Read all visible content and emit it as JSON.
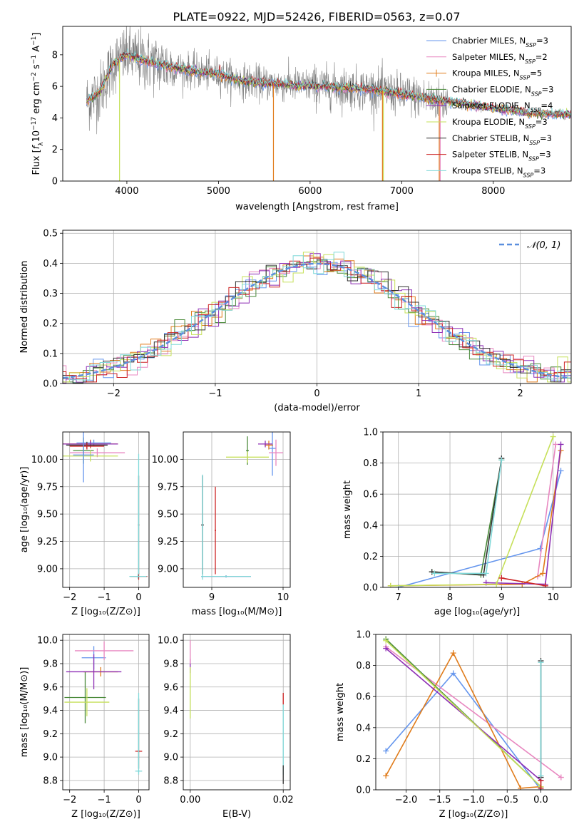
{
  "figure_title": "PLATE=0922, MJD=52426, FIBERID=0563, z=0.07",
  "colors": {
    "chabrier_miles": "#6495ed",
    "salpeter_miles": "#e887c0",
    "kroupa_miles": "#e07b1a",
    "chabrier_elodie": "#4a8a3a",
    "salpeter_elodie": "#8e2fb5",
    "kroupa_elodie": "#c6e05a",
    "chabrier_stelib": "#333333",
    "salpeter_stelib": "#cc2222",
    "kroupa_stelib": "#7fd8d8",
    "data": "#808080",
    "normal": "#5b8fde",
    "grid": "#b0b0b0"
  },
  "chart_data": [
    {
      "id": "spectrum",
      "type": "line",
      "title": "PLATE=0922, MJD=52426, FIBERID=0563, z=0.07",
      "xlabel": "wavelength [Angstrom, rest frame]",
      "ylabel": "Flux [f_λ 10^-17 erg cm^-2 s^-1 A^-1]",
      "xlim": [
        3300,
        8850
      ],
      "ylim": [
        0,
        9.8
      ],
      "xticks": [
        4000,
        5000,
        6000,
        7000,
        8000
      ],
      "yticks": [
        0,
        2,
        4,
        6,
        8
      ],
      "grid": false,
      "legend_position": "top-right",
      "continuum": {
        "x": [
          3550,
          3700,
          3850,
          4000,
          4200,
          4500,
          4800,
          5000,
          5200,
          5500,
          5800,
          6100,
          6400,
          6700,
          7000,
          7200,
          7400,
          7600,
          8000,
          8400,
          8800
        ],
        "y": [
          5.0,
          5.6,
          7.4,
          8.0,
          7.6,
          7.2,
          6.9,
          6.8,
          6.4,
          6.2,
          6.1,
          6.0,
          5.9,
          5.8,
          5.5,
          5.3,
          5.1,
          5.0,
          4.6,
          4.3,
          4.2
        ]
      },
      "series": [
        {
          "name": "Chabrier MILES, N_SSP=3",
          "color_key": "chabrier_miles"
        },
        {
          "name": "Salpeter MILES, N_SSP=2",
          "color_key": "salpeter_miles"
        },
        {
          "name": "Kroupa MILES, N_SSP=5",
          "color_key": "kroupa_miles"
        },
        {
          "name": "Chabrier ELODIE, N_SSP=3",
          "color_key": "chabrier_elodie"
        },
        {
          "name": "Salpeter ELODIE, N_SSP=4",
          "color_key": "salpeter_elodie"
        },
        {
          "name": "Kroupa ELODIE, N_SSP=3",
          "color_key": "kroupa_elodie"
        },
        {
          "name": "Chabrier STELIB, N_SSP=3",
          "color_key": "chabrier_stelib"
        },
        {
          "name": "Salpeter STELIB, N_SSP=3",
          "color_key": "salpeter_stelib"
        },
        {
          "name": "Kroupa STELIB, N_SSP=3",
          "color_key": "kroupa_stelib"
        }
      ],
      "legend_labels": [
        {
          "base": "Chabrier MILES, N",
          "sub": "SSP",
          "tail": "=3"
        },
        {
          "base": "Salpeter MILES, N",
          "sub": "SSP",
          "tail": "=2"
        },
        {
          "base": "Kroupa MILES, N",
          "sub": "SSP",
          "tail": "=5"
        },
        {
          "base": "Chabrier ELODIE, N",
          "sub": "SSP",
          "tail": "=3"
        },
        {
          "base": "Salpeter ELODIE, N",
          "sub": "SSP",
          "tail": "=4"
        },
        {
          "base": "Kroupa ELODIE, N",
          "sub": "SSP",
          "tail": "=3"
        },
        {
          "base": "Chabrier STELIB, N",
          "sub": "SSP",
          "tail": "=3"
        },
        {
          "base": "Salpeter STELIB, N",
          "sub": "SSP",
          "tail": "=3"
        },
        {
          "base": "Kroupa STELIB, N",
          "sub": "SSP",
          "tail": "=3"
        }
      ],
      "spikes": [
        {
          "x": 3920,
          "y": 0,
          "color_key": "kroupa_elodie"
        },
        {
          "x": 5600,
          "y": 0,
          "color_key": "kroupa_miles"
        },
        {
          "x": 6790,
          "y": 0,
          "color_key": "kroupa_miles"
        },
        {
          "x": 6800,
          "y": 0,
          "color_key": "kroupa_elodie"
        },
        {
          "x": 7410,
          "y": 0,
          "color_key": "kroupa_miles"
        },
        {
          "x": 7420,
          "y": 0,
          "color_key": "salpeter_miles"
        }
      ]
    },
    {
      "id": "residuals",
      "type": "line",
      "xlabel": "(data-model)/error",
      "ylabel": "Normed distribution",
      "xlim": [
        -2.5,
        2.5
      ],
      "ylim": [
        0,
        0.51
      ],
      "xticks": [
        -2,
        -1,
        0,
        1,
        2
      ],
      "yticks": [
        0.0,
        0.1,
        0.2,
        0.3,
        0.4,
        0.5
      ],
      "grid": true,
      "legend_position": "top-right",
      "legend": "N(0,1)",
      "bin_width": 0.1,
      "peak_bins": [
        {
          "x": 0.0,
          "y": 0.43
        },
        {
          "x": -0.2,
          "y": 0.46
        },
        {
          "x": 0.15,
          "y": 0.49
        },
        {
          "x": -0.65,
          "y": 0.41
        }
      ]
    },
    {
      "id": "age_vs_Z",
      "type": "scatter",
      "xlabel": "Z [log10(Z/Z⊙)]",
      "ylabel": "age [log10(age/yr)]",
      "xlim": [
        -2.2,
        0.3
      ],
      "ylim": [
        8.83,
        10.25
      ],
      "xticks": [
        -2,
        -1,
        0
      ],
      "yticks": [
        9.0,
        9.25,
        9.5,
        9.75,
        10.0
      ],
      "grid": true,
      "points": [
        {
          "x": -1.3,
          "y": 10.15,
          "xerr": 0.5,
          "yerr": 0.03,
          "color_key": "chabrier_miles"
        },
        {
          "x": -1.2,
          "y": 10.06,
          "xerr": 0.8,
          "yerr": 0.04,
          "color_key": "salpeter_miles"
        },
        {
          "x": -1.4,
          "y": 10.14,
          "xerr": 0.8,
          "yerr": 0.04,
          "color_key": "kroupa_miles"
        },
        {
          "x": -1.6,
          "y": 10.08,
          "xerr": 0.3,
          "yerr": 0.12,
          "color_key": "chabrier_elodie"
        },
        {
          "x": -1.4,
          "y": 10.14,
          "xerr": 0.8,
          "yerr": 0.03,
          "color_key": "salpeter_elodie"
        },
        {
          "x": -1.4,
          "y": 10.03,
          "xerr": 0.8,
          "yerr": 0.05,
          "color_key": "kroupa_elodie"
        },
        {
          "x": -1.5,
          "y": 10.13,
          "xerr": 0.6,
          "yerr": 0.03,
          "color_key": "chabrier_stelib"
        },
        {
          "x": -1.5,
          "y": 10.12,
          "xerr": 0.5,
          "yerr": 0.03,
          "color_key": "salpeter_stelib"
        },
        {
          "x": 0.0,
          "y": 9.4,
          "xerr": 0.02,
          "yerr": 0.45,
          "color_key": "chabrier_stelib"
        },
        {
          "x": 0.0,
          "y": 8.93,
          "xerr": 0.25,
          "yerr": 0.03,
          "color_key": "salpeter_stelib"
        },
        {
          "x": 0.0,
          "y": 9.5,
          "xerr": 0.02,
          "yerr": 0.55,
          "color_key": "kroupa_stelib"
        },
        {
          "x": -0.02,
          "y": 8.93,
          "xerr": 0.25,
          "yerr": 0.02,
          "color_key": "kroupa_stelib"
        },
        {
          "x": -1.6,
          "y": 10.04,
          "xerr": 0.3,
          "yerr": 0.25,
          "color_key": "chabrier_miles"
        }
      ]
    },
    {
      "id": "age_vs_mass",
      "type": "scatter",
      "xlabel": "mass [log10(M/M⊙)]",
      "ylabel": "",
      "xlim": [
        8.6,
        10.1
      ],
      "ylim": [
        8.83,
        10.25
      ],
      "xticks": [
        9,
        10
      ],
      "yticks": [
        9.0,
        9.25,
        9.5,
        9.75,
        10.0
      ],
      "grid": true,
      "points": [
        {
          "x": 9.85,
          "y": 10.1,
          "xerr": 0.05,
          "yerr": 0.25,
          "color_key": "chabrier_miles"
        },
        {
          "x": 9.9,
          "y": 10.06,
          "xerr": 0.1,
          "yerr": 0.12,
          "color_key": "salpeter_miles"
        },
        {
          "x": 9.8,
          "y": 10.13,
          "xerr": 0.06,
          "yerr": 0.04,
          "color_key": "kroupa_miles"
        },
        {
          "x": 9.5,
          "y": 10.08,
          "xerr": 0.02,
          "yerr": 0.13,
          "color_key": "chabrier_elodie"
        },
        {
          "x": 9.75,
          "y": 10.14,
          "xerr": 0.1,
          "yerr": 0.03,
          "color_key": "salpeter_elodie"
        },
        {
          "x": 9.5,
          "y": 10.02,
          "xerr": 0.3,
          "yerr": 0.05,
          "color_key": "kroupa_elodie"
        },
        {
          "x": 8.87,
          "y": 9.4,
          "xerr": 0.02,
          "yerr": 0.45,
          "color_key": "chabrier_stelib"
        },
        {
          "x": 9.05,
          "y": 9.35,
          "xerr": 0.01,
          "yerr": 0.4,
          "color_key": "salpeter_stelib"
        },
        {
          "x": 8.87,
          "y": 9.38,
          "xerr": 0.01,
          "yerr": 0.48,
          "color_key": "kroupa_stelib"
        },
        {
          "x": 9.2,
          "y": 8.93,
          "xerr": 0.35,
          "yerr": 0.01,
          "color_key": "salpeter_elodie"
        },
        {
          "x": 9.2,
          "y": 8.93,
          "xerr": 0.35,
          "yerr": 0.01,
          "color_key": "kroupa_stelib"
        }
      ]
    },
    {
      "id": "weight_vs_age",
      "type": "line",
      "xlabel": "age [log10(age/yr)]",
      "ylabel": "mass weight",
      "xlim": [
        6.7,
        10.35
      ],
      "ylim": [
        0,
        1.0
      ],
      "xticks": [
        7,
        8,
        9,
        10
      ],
      "yticks": [
        0.0,
        0.2,
        0.4,
        0.6,
        0.8,
        1.0
      ],
      "grid": true,
      "series": [
        {
          "color_key": "chabrier_miles",
          "x": [
            7.0,
            9.75,
            10.15
          ],
          "y": [
            0.0,
            0.25,
            0.75
          ]
        },
        {
          "color_key": "salpeter_miles",
          "x": [
            9.7,
            10.05
          ],
          "y": [
            0.07,
            0.92
          ]
        },
        {
          "color_key": "kroupa_miles",
          "x": [
            6.85,
            9.4,
            9.8,
            10.15
          ],
          "y": [
            0.01,
            0.02,
            0.09,
            0.88
          ]
        },
        {
          "color_key": "chabrier_elodie",
          "x": [
            7.65,
            8.6,
            9.0
          ],
          "y": [
            0.1,
            0.08,
            0.82
          ]
        },
        {
          "color_key": "salpeter_elodie",
          "x": [
            8.7,
            9.85,
            10.15
          ],
          "y": [
            0.03,
            0.02,
            0.92
          ]
        },
        {
          "color_key": "kroupa_elodie",
          "x": [
            6.85,
            8.9,
            10.0
          ],
          "y": [
            0.01,
            0.02,
            0.97
          ]
        },
        {
          "color_key": "chabrier_stelib",
          "x": [
            7.65,
            8.65,
            9.0
          ],
          "y": [
            0.1,
            0.08,
            0.83
          ]
        },
        {
          "color_key": "salpeter_stelib",
          "x": [
            9.0,
            9.85
          ],
          "y": [
            0.06,
            0.01
          ]
        },
        {
          "color_key": "kroupa_stelib",
          "x": [
            7.7,
            8.7,
            9.0
          ],
          "y": [
            0.09,
            0.09,
            0.82
          ]
        }
      ]
    },
    {
      "id": "mass_vs_Z",
      "type": "scatter",
      "xlabel": "Z [log10(Z/Z⊙)]",
      "ylabel": "mass [log10(M/M⊙)]",
      "xlim": [
        -2.2,
        0.3
      ],
      "ylim": [
        8.72,
        10.05
      ],
      "xticks": [
        -2,
        -1,
        0
      ],
      "yticks": [
        8.8,
        9.0,
        9.2,
        9.4,
        9.6,
        9.8,
        10.0
      ],
      "grid": true,
      "points": [
        {
          "x": -1.3,
          "y": 9.85,
          "xerr": 0.35,
          "yerr": 0.1,
          "color_key": "chabrier_miles"
        },
        {
          "x": -1.0,
          "y": 9.91,
          "xerr": 0.85,
          "yerr": 0.08,
          "color_key": "salpeter_miles"
        },
        {
          "x": -1.1,
          "y": 9.73,
          "xerr": 0.5,
          "yerr": 0.04,
          "color_key": "kroupa_miles"
        },
        {
          "x": -1.55,
          "y": 9.51,
          "xerr": 0.6,
          "yerr": 0.22,
          "color_key": "chabrier_elodie"
        },
        {
          "x": -1.3,
          "y": 9.73,
          "xerr": 0.8,
          "yerr": 0.15,
          "color_key": "salpeter_elodie"
        },
        {
          "x": -1.5,
          "y": 9.47,
          "xerr": 0.65,
          "yerr": 0.12,
          "color_key": "kroupa_elodie"
        },
        {
          "x": 0.0,
          "y": 9.2,
          "xerr": 0.02,
          "yerr": 0.3,
          "color_key": "chabrier_stelib"
        },
        {
          "x": 0.0,
          "y": 9.05,
          "xerr": 0.1,
          "yerr": 0.01,
          "color_key": "salpeter_stelib"
        },
        {
          "x": 0.0,
          "y": 8.88,
          "xerr": 0.1,
          "yerr": 0.01,
          "color_key": "kroupa_stelib"
        },
        {
          "x": 0.0,
          "y": 9.2,
          "xerr": 0.02,
          "yerr": 0.35,
          "color_key": "kroupa_stelib"
        }
      ]
    },
    {
      "id": "mass_vs_ebv",
      "type": "scatter",
      "xlabel": "E(B-V)",
      "ylabel": "",
      "xlim": [
        -0.0015,
        0.0215
      ],
      "ylim": [
        8.72,
        10.05
      ],
      "xticks": [
        0.0,
        0.02
      ],
      "yticks": [
        8.8,
        9.0,
        9.2,
        9.4,
        9.6,
        9.8,
        10.0
      ],
      "grid": true,
      "points": [
        {
          "x": 0.0,
          "y": 9.78,
          "xerr": 0.0,
          "yerr": 0.06,
          "color_key": "salpeter_elodie"
        },
        {
          "x": 0.0,
          "y": 9.9,
          "xerr": 0.0,
          "yerr": 0.1,
          "color_key": "salpeter_miles"
        },
        {
          "x": 0.0,
          "y": 9.55,
          "xerr": 0.0,
          "yerr": 0.22,
          "color_key": "kroupa_elodie"
        },
        {
          "x": 0.02,
          "y": 9.5,
          "xerr": 0.0,
          "yerr": 0.05,
          "color_key": "salpeter_stelib"
        },
        {
          "x": 0.02,
          "y": 9.15,
          "xerr": 0.0,
          "yerr": 0.3,
          "color_key": "kroupa_stelib"
        },
        {
          "x": 0.02,
          "y": 8.85,
          "xerr": 0.0,
          "yerr": 0.08,
          "color_key": "chabrier_stelib"
        }
      ]
    },
    {
      "id": "weight_vs_Z",
      "type": "line",
      "xlabel": "Z [log10(Z/Z⊙)]",
      "ylabel": "mass weight",
      "xlim": [
        -2.45,
        0.45
      ],
      "ylim": [
        0,
        1.0
      ],
      "xticks": [
        -2.0,
        -1.5,
        -1.0,
        -0.5,
        0.0
      ],
      "yticks": [
        0.0,
        0.2,
        0.4,
        0.6,
        0.8,
        1.0
      ],
      "grid": true,
      "series": [
        {
          "color_key": "chabrier_miles",
          "x": [
            -2.3,
            -1.3,
            0.0
          ],
          "y": [
            0.25,
            0.75,
            0.0
          ]
        },
        {
          "color_key": "salpeter_miles",
          "x": [
            -2.3,
            0.3
          ],
          "y": [
            0.92,
            0.08
          ]
        },
        {
          "color_key": "kroupa_miles",
          "x": [
            -2.3,
            -1.3,
            -0.3,
            0.0
          ],
          "y": [
            0.09,
            0.88,
            0.01,
            0.02
          ]
        },
        {
          "color_key": "chabrier_elodie",
          "x": [
            -2.3,
            0.0
          ],
          "y": [
            0.97,
            0.02
          ]
        },
        {
          "color_key": "salpeter_elodie",
          "x": [
            -2.3,
            0.0
          ],
          "y": [
            0.91,
            0.06
          ]
        },
        {
          "color_key": "kroupa_elodie",
          "x": [
            -2.3,
            0.0
          ],
          "y": [
            0.96,
            0.02
          ]
        },
        {
          "color_key": "chabrier_stelib",
          "x": [
            0.0,
            0.0
          ],
          "y": [
            0.08,
            0.83
          ]
        },
        {
          "color_key": "salpeter_stelib",
          "x": [
            0.0,
            0.0
          ],
          "y": [
            0.06,
            0.01
          ]
        },
        {
          "color_key": "kroupa_stelib",
          "x": [
            0.0,
            0.0
          ],
          "y": [
            0.09,
            0.82
          ]
        }
      ]
    }
  ]
}
